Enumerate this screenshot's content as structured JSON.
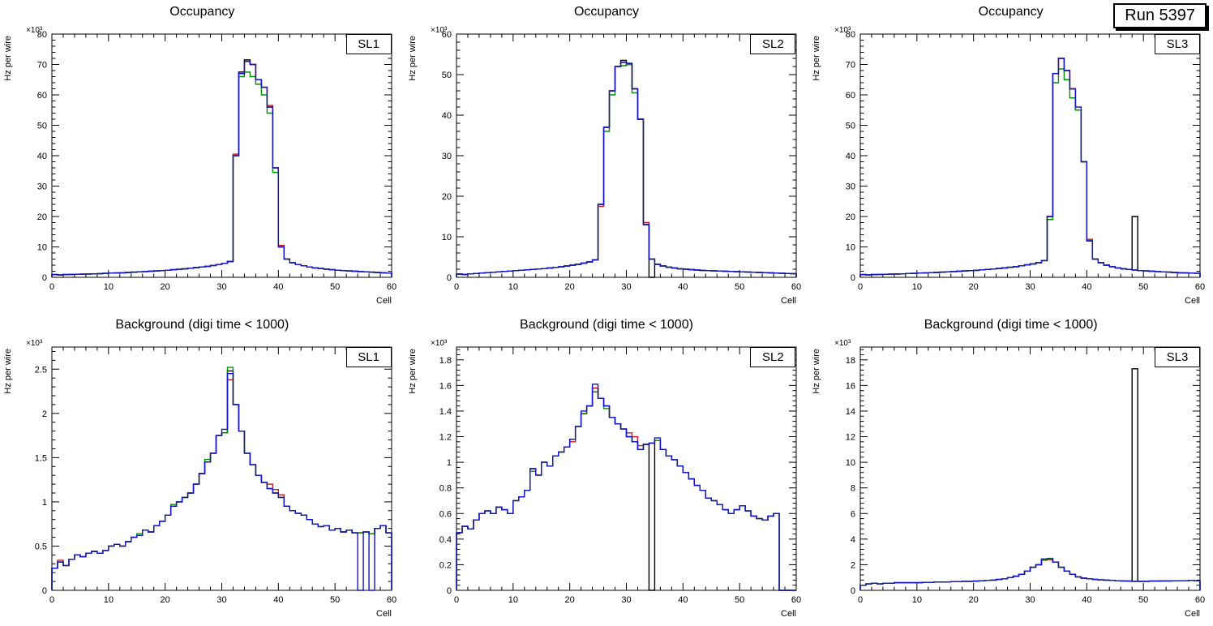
{
  "run_label": "Run 5397",
  "series_colors": {
    "black": "#000000",
    "red": "#cc1a1a",
    "green": "#009100",
    "blue": "#1414cc"
  },
  "chart_data": [
    {
      "type": "histogram-step",
      "title": "Occupancy",
      "label": "SL1",
      "xlabel": "Cell",
      "ylabel": "Hz per wire",
      "y_multiplier": "×10³",
      "xlim": [
        0,
        60
      ],
      "ylim": [
        0,
        80
      ],
      "xticks": [
        0,
        10,
        20,
        30,
        40,
        50,
        60
      ],
      "yticks": [
        0,
        10,
        20,
        30,
        40,
        50,
        60,
        70,
        80
      ],
      "bin_width": 1,
      "base": [
        0.9,
        0.8,
        0.9,
        0.95,
        1.0,
        1.05,
        1.1,
        1.15,
        1.2,
        1.3,
        1.4,
        1.45,
        1.5,
        1.6,
        1.7,
        1.8,
        1.9,
        2.0,
        2.1,
        2.2,
        2.35,
        2.5,
        2.65,
        2.8,
        3.0,
        3.2,
        3.4,
        3.6,
        3.9,
        4.2,
        4.6,
        5.2,
        40.0,
        67.0,
        71.0,
        70.0,
        65.0,
        62.5,
        56.0,
        36.0,
        10.0,
        6.0,
        4.8,
        4.2,
        3.8,
        3.4,
        3.1,
        2.9,
        2.7,
        2.5,
        2.35,
        2.2,
        2.1,
        2.0,
        1.9,
        1.8,
        1.7,
        1.6,
        1.5,
        1.4
      ],
      "series": [
        {
          "name": "hist-black",
          "color": "black",
          "overrides": {
            "33": 67.5,
            "34": 71.5
          }
        },
        {
          "name": "hist-red",
          "color": "red",
          "overrides": {
            "32": 40.5,
            "38": 56.5,
            "40": 10.5
          }
        },
        {
          "name": "hist-green",
          "color": "green",
          "overrides": {
            "33": 66.0,
            "34": 67.5,
            "35": 66.0,
            "36": 63.5,
            "37": 60.0,
            "38": 54.0,
            "39": 34.5
          }
        },
        {
          "name": "hist-blue",
          "color": "blue",
          "overrides": {}
        }
      ]
    },
    {
      "type": "histogram-step",
      "title": "Occupancy",
      "label": "SL2",
      "xlabel": "Cell",
      "ylabel": "Hz per wire",
      "y_multiplier": "×10³",
      "xlim": [
        0,
        60
      ],
      "ylim": [
        0,
        60
      ],
      "xticks": [
        0,
        10,
        20,
        30,
        40,
        50,
        60
      ],
      "yticks": [
        0,
        10,
        20,
        30,
        40,
        50,
        60
      ],
      "bin_width": 1,
      "base": [
        0.8,
        0.7,
        0.85,
        0.95,
        1.05,
        1.15,
        1.25,
        1.35,
        1.45,
        1.55,
        1.65,
        1.75,
        1.85,
        1.95,
        2.05,
        2.15,
        2.3,
        2.45,
        2.6,
        2.8,
        3.0,
        3.2,
        3.5,
        3.8,
        4.3,
        18.0,
        37.0,
        46.0,
        52.0,
        53.0,
        52.5,
        46.5,
        39.0,
        13.0,
        4.5,
        3.2,
        2.8,
        2.5,
        2.3,
        2.1,
        2.0,
        1.9,
        1.8,
        1.7,
        1.65,
        1.6,
        1.55,
        1.5,
        1.45,
        1.4,
        1.35,
        1.3,
        1.25,
        1.2,
        1.15,
        1.1,
        1.05,
        1.0,
        0.95,
        0.9
      ],
      "series": [
        {
          "name": "hist-black",
          "color": "black",
          "overrides": {
            "29": 53.5,
            "34": 0.0
          }
        },
        {
          "name": "hist-red",
          "color": "red",
          "overrides": {
            "25": 17.5,
            "33": 13.5
          }
        },
        {
          "name": "hist-green",
          "color": "green",
          "overrides": {
            "26": 36.0,
            "27": 45.0,
            "29": 52.2,
            "31": 45.5
          }
        },
        {
          "name": "hist-blue",
          "color": "blue",
          "overrides": {
            "30": 52.8
          }
        }
      ]
    },
    {
      "type": "histogram-step",
      "title": "Occupancy",
      "label": "SL3",
      "xlabel": "Cell",
      "ylabel": "Hz per wire",
      "y_multiplier": "×10³",
      "xlim": [
        0,
        60
      ],
      "ylim": [
        0,
        80
      ],
      "xticks": [
        0,
        10,
        20,
        30,
        40,
        50,
        60
      ],
      "yticks": [
        0,
        10,
        20,
        30,
        40,
        50,
        60,
        70,
        80
      ],
      "bin_width": 1,
      "base": [
        0.9,
        0.8,
        0.9,
        0.95,
        1.0,
        1.05,
        1.1,
        1.15,
        1.25,
        1.3,
        1.4,
        1.45,
        1.55,
        1.6,
        1.7,
        1.8,
        1.9,
        2.0,
        2.1,
        2.2,
        2.3,
        2.45,
        2.6,
        2.75,
        2.9,
        3.1,
        3.3,
        3.5,
        3.8,
        4.1,
        4.4,
        4.8,
        5.5,
        20.0,
        67.0,
        72.0,
        68.0,
        62.0,
        55.0,
        38.0,
        12.0,
        6.0,
        4.8,
        4.0,
        3.5,
        3.1,
        2.8,
        2.6,
        2.4,
        2.2,
        2.1,
        2.0,
        1.9,
        1.8,
        1.7,
        1.6,
        1.5,
        1.45,
        1.4,
        1.35
      ],
      "series": [
        {
          "name": "hist-black",
          "color": "black",
          "overrides": {
            "48": 20.0
          }
        },
        {
          "name": "hist-red",
          "color": "red",
          "overrides": {
            "40": 12.5
          }
        },
        {
          "name": "hist-green",
          "color": "green",
          "overrides": {
            "33": 19.0,
            "34": 64.0,
            "35": 68.5,
            "36": 65.0,
            "37": 59.0
          }
        },
        {
          "name": "hist-blue",
          "color": "blue",
          "overrides": {
            "38": 56.0
          }
        }
      ]
    },
    {
      "type": "histogram-step",
      "title": "Background (digi time < 1000)",
      "label": "SL1",
      "xlabel": "Cell",
      "ylabel": "Hz per wire",
      "y_multiplier": "×10³",
      "xlim": [
        0,
        60
      ],
      "ylim": [
        0,
        2.75
      ],
      "xticks": [
        0,
        10,
        20,
        30,
        40,
        50,
        60
      ],
      "yticks": [
        0,
        0.5,
        1,
        1.5,
        2,
        2.5
      ],
      "bin_width": 1,
      "base": [
        0.25,
        0.32,
        0.28,
        0.35,
        0.4,
        0.38,
        0.42,
        0.44,
        0.42,
        0.45,
        0.5,
        0.52,
        0.5,
        0.55,
        0.6,
        0.62,
        0.68,
        0.66,
        0.73,
        0.78,
        0.85,
        0.95,
        1.0,
        1.05,
        1.1,
        1.2,
        1.32,
        1.45,
        1.55,
        1.75,
        1.78,
        2.45,
        2.1,
        1.8,
        1.55,
        1.42,
        1.3,
        1.22,
        1.15,
        1.1,
        1.05,
        0.95,
        0.9,
        0.87,
        0.85,
        0.8,
        0.75,
        0.72,
        0.73,
        0.68,
        0.7,
        0.66,
        0.68,
        0.65,
        0.65,
        0.66,
        0.64,
        0.7,
        0.73,
        0.65
      ],
      "series": [
        {
          "name": "hist-black",
          "color": "black",
          "overrides": {
            "31": 2.48
          }
        },
        {
          "name": "hist-red",
          "color": "red",
          "overrides": {
            "1": 0.34,
            "31": 2.38,
            "38": 1.2,
            "39": 1.14,
            "40": 1.08
          }
        },
        {
          "name": "hist-green",
          "color": "green",
          "overrides": {
            "15": 0.64,
            "21": 0.97,
            "27": 1.48,
            "31": 2.52
          }
        },
        {
          "name": "hist-blue",
          "color": "blue",
          "overrides": {
            "30": 1.82,
            "54": 0.0,
            "56": 0.0
          }
        }
      ]
    },
    {
      "type": "histogram-step",
      "title": "Background (digi time < 1000)",
      "label": "SL2",
      "xlabel": "Cell",
      "ylabel": "Hz per wire",
      "y_multiplier": "×10³",
      "xlim": [
        0,
        60
      ],
      "ylim": [
        0,
        1.9
      ],
      "xticks": [
        0,
        10,
        20,
        30,
        40,
        50,
        60
      ],
      "yticks": [
        0,
        0.2,
        0.4,
        0.6,
        0.8,
        1,
        1.2,
        1.4,
        1.6,
        1.8
      ],
      "bin_width": 1,
      "base": [
        0.45,
        0.5,
        0.48,
        0.55,
        0.6,
        0.62,
        0.6,
        0.65,
        0.63,
        0.6,
        0.7,
        0.73,
        0.78,
        0.95,
        0.9,
        1.0,
        0.97,
        1.05,
        1.08,
        1.12,
        1.18,
        1.28,
        1.38,
        1.44,
        1.58,
        1.5,
        1.44,
        1.35,
        1.3,
        1.26,
        1.2,
        1.16,
        1.1,
        1.14,
        1.15,
        1.17,
        1.1,
        1.05,
        1.02,
        0.97,
        0.92,
        0.87,
        0.82,
        0.78,
        0.72,
        0.7,
        0.67,
        0.63,
        0.6,
        0.63,
        0.66,
        0.62,
        0.58,
        0.56,
        0.55,
        0.58,
        0.6,
        0.0,
        0.0,
        0.0
      ],
      "series": [
        {
          "name": "hist-black",
          "color": "black",
          "overrides": {
            "34": 0.0
          }
        },
        {
          "name": "hist-red",
          "color": "red",
          "overrides": {
            "20": 1.16,
            "30": 1.23,
            "31": 1.2,
            "32": 1.13
          }
        },
        {
          "name": "hist-green",
          "color": "green",
          "overrides": {
            "13": 0.93,
            "24": 1.55,
            "26": 1.42
          }
        },
        {
          "name": "hist-blue",
          "color": "blue",
          "overrides": {
            "22": 1.4,
            "24": 1.61,
            "35": 1.19
          }
        }
      ]
    },
    {
      "type": "histogram-step",
      "title": "Background (digi time < 1000)",
      "label": "SL3",
      "xlabel": "Cell",
      "ylabel": "Hz per wire",
      "y_multiplier": "×10³",
      "xlim": [
        0,
        60
      ],
      "ylim": [
        0,
        19
      ],
      "xticks": [
        0,
        10,
        20,
        30,
        40,
        50,
        60
      ],
      "yticks": [
        0,
        2,
        4,
        6,
        8,
        10,
        12,
        14,
        16,
        18
      ],
      "bin_width": 1,
      "base": [
        0.4,
        0.5,
        0.55,
        0.5,
        0.55,
        0.55,
        0.6,
        0.6,
        0.6,
        0.6,
        0.6,
        0.62,
        0.62,
        0.65,
        0.65,
        0.65,
        0.68,
        0.68,
        0.7,
        0.7,
        0.72,
        0.75,
        0.78,
        0.8,
        0.85,
        0.9,
        1.0,
        1.1,
        1.25,
        1.5,
        1.8,
        2.0,
        2.4,
        2.45,
        2.2,
        1.8,
        1.5,
        1.25,
        1.05,
        0.95,
        0.9,
        0.85,
        0.82,
        0.8,
        0.78,
        0.75,
        0.73,
        0.72,
        0.7,
        0.7,
        0.7,
        0.72,
        0.72,
        0.73,
        0.73,
        0.74,
        0.75,
        0.75,
        0.78,
        0.75
      ],
      "series": [
        {
          "name": "hist-black",
          "color": "black",
          "overrides": {
            "48": 17.3
          }
        },
        {
          "name": "hist-red",
          "color": "red",
          "overrides": {
            "33": 2.4
          }
        },
        {
          "name": "hist-green",
          "color": "green",
          "overrides": {
            "32": 2.35,
            "33": 2.5
          }
        },
        {
          "name": "hist-blue",
          "color": "blue",
          "overrides": {
            "32": 2.45
          }
        }
      ]
    }
  ]
}
